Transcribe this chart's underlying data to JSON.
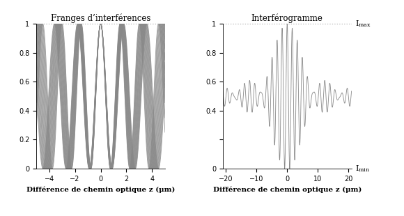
{
  "title_left": "Franges d’interférences",
  "title_right": "Interférogramme",
  "xlabel": "Différence de chemin optique z (μm)",
  "xlim_left": [
    -5.0,
    5.0
  ],
  "xlim_right": [
    -21,
    21
  ],
  "ylim": [
    0,
    1
  ],
  "lambda_min": 1.5,
  "lambda_max": 1.8,
  "n_wavelengths": 20,
  "line_color": "#888888",
  "line_width": 0.6,
  "bg_color": "#ffffff",
  "xticks_left": [
    -4,
    -2,
    0,
    2,
    4
  ],
  "xticks_right": [
    -20,
    -10,
    0,
    10,
    20
  ],
  "yticks_left": [
    0,
    0.2,
    0.4,
    0.6,
    0.8,
    1
  ],
  "ytick_labels_left": [
    "0",
    "0.2",
    "0.4",
    "0.6",
    "0.8",
    "1"
  ],
  "yticks_right": [
    0,
    0.2,
    0.4,
    0.6,
    0.8,
    1
  ],
  "ytick_labels_right": [
    "0",
    "",
    "0.4",
    "0.6",
    "0.8",
    "1"
  ]
}
